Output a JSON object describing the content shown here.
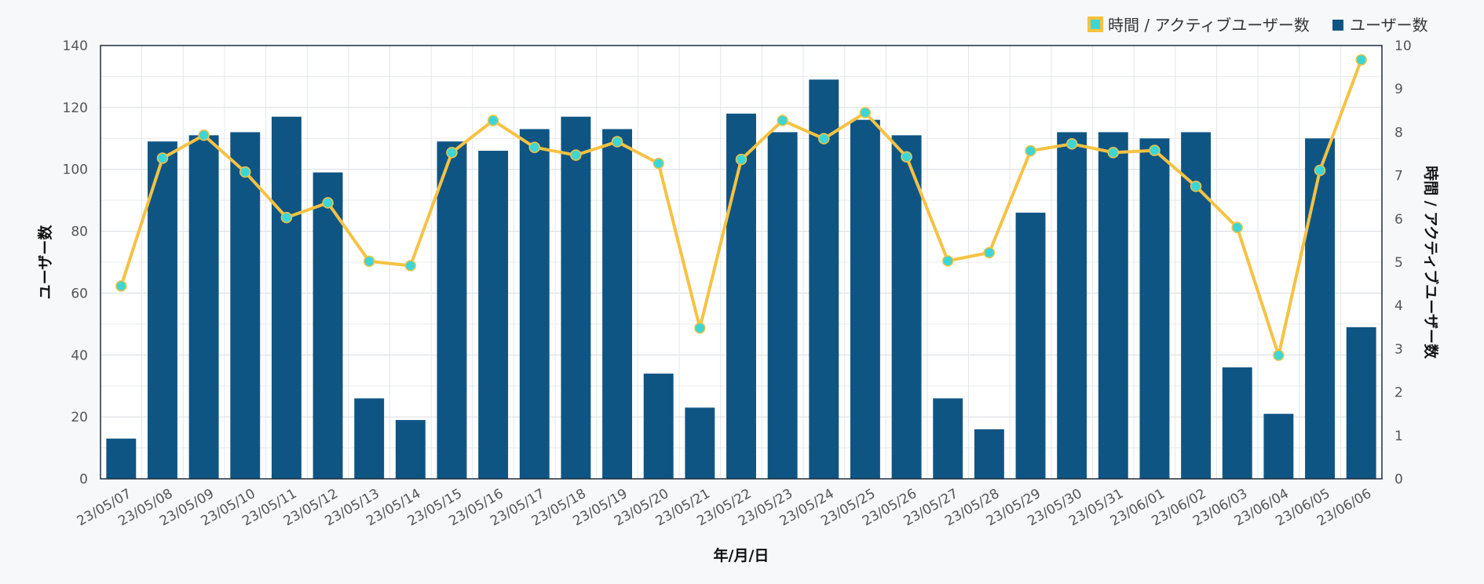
{
  "chart_data": {
    "type": "bar",
    "categories": [
      "23/05/07",
      "23/05/08",
      "23/05/09",
      "23/05/10",
      "23/05/11",
      "23/05/12",
      "23/05/13",
      "23/05/14",
      "23/05/15",
      "23/05/16",
      "23/05/17",
      "23/05/18",
      "23/05/19",
      "23/05/20",
      "23/05/21",
      "23/05/22",
      "23/05/23",
      "23/05/24",
      "23/05/25",
      "23/05/26",
      "23/05/27",
      "23/05/28",
      "23/05/29",
      "23/05/30",
      "23/05/31",
      "23/06/01",
      "23/06/02",
      "23/06/03",
      "23/06/04",
      "23/06/05",
      "23/06/06"
    ],
    "series": [
      {
        "name": "ユーザー数",
        "type": "bar",
        "axis": "left",
        "color": "#0f5584",
        "values": [
          13,
          109,
          111,
          112,
          117,
          99,
          26,
          19,
          109,
          106,
          113,
          117,
          113,
          34,
          23,
          118,
          112,
          129,
          116,
          111,
          26,
          16,
          86,
          112,
          112,
          110,
          112,
          36,
          21,
          110,
          49
        ]
      },
      {
        "name": "時間 / アクティブユーザー数",
        "type": "line",
        "axis": "right",
        "color": "#f5c242",
        "marker_color": "#3dd6d6",
        "values": [
          4.45,
          7.4,
          7.93,
          7.08,
          6.03,
          6.37,
          5.02,
          4.92,
          7.53,
          8.27,
          7.65,
          7.47,
          7.78,
          7.28,
          3.48,
          7.37,
          8.27,
          7.85,
          8.45,
          7.43,
          5.03,
          5.22,
          7.57,
          7.73,
          7.53,
          7.58,
          6.75,
          5.8,
          2.85,
          7.12,
          9.67
        ]
      }
    ],
    "xlabel": "年/月/日",
    "ylabel": "ユーザー数",
    "y2label": "時間 / アクティブユーザー数",
    "ylim": [
      0,
      140
    ],
    "yticks": [
      0,
      20,
      40,
      60,
      80,
      100,
      120,
      140
    ],
    "y2lim": [
      0,
      10
    ],
    "y2ticks": [
      0,
      1,
      2,
      3,
      4,
      5,
      6,
      7,
      8,
      9,
      10
    ],
    "grid": true,
    "legend": "top-right",
    "legend_order": [
      "時間 / アクティブユーザー数",
      "ユーザー数"
    ]
  }
}
